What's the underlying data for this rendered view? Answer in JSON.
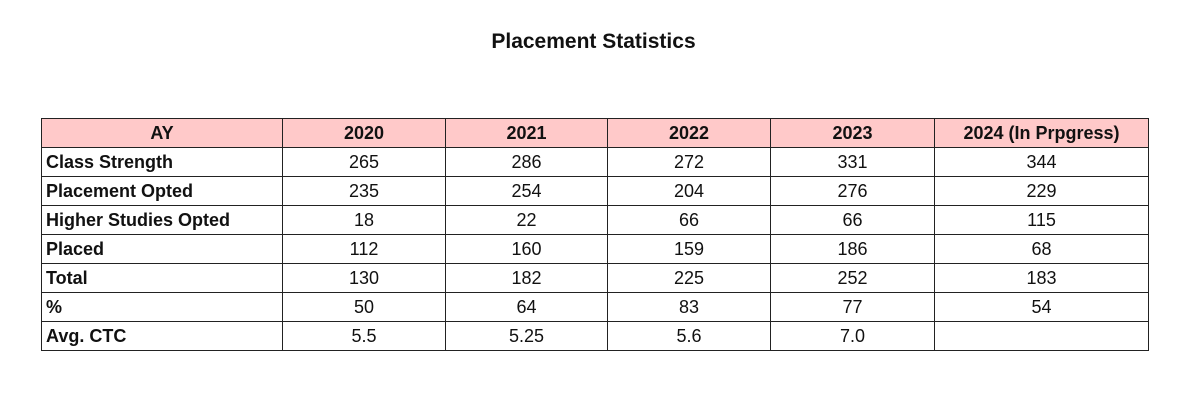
{
  "header": {
    "title": "Placement Statistics"
  },
  "table": {
    "columns": [
      "AY",
      "2020",
      "2021",
      "2022",
      "2023",
      "2024 (In Prpgress)"
    ],
    "rows": [
      [
        "Class Strength",
        "265",
        "286",
        "272",
        "331",
        "344"
      ],
      [
        "Placement Opted",
        "235",
        "254",
        "204",
        "276",
        "229"
      ],
      [
        "Higher Studies Opted",
        "18",
        "22",
        "66",
        "66",
        "115"
      ],
      [
        "Placed",
        "112",
        "160",
        "159",
        "186",
        "68"
      ],
      [
        "Total",
        "130",
        "182",
        "225",
        "252",
        "183"
      ],
      [
        "%",
        "50",
        "64",
        "83",
        "77",
        "54"
      ],
      [
        "Avg. CTC",
        "5.5",
        "5.25",
        "5.6",
        "7.0",
        null
      ]
    ]
  }
}
